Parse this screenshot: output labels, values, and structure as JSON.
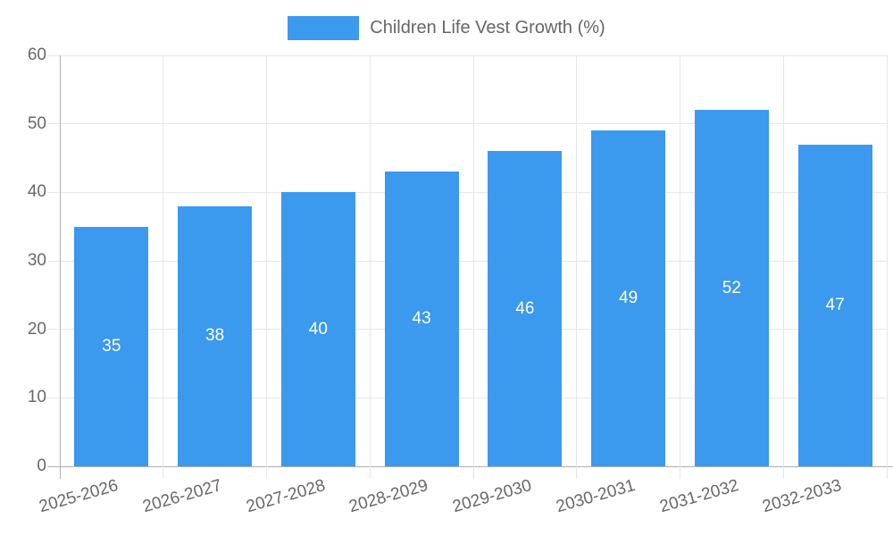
{
  "legend": {
    "label": "Children Life Vest Growth (%)"
  },
  "chart_data": {
    "type": "bar",
    "title": "Children Life Vest Growth (%)",
    "categories": [
      "2025-2026",
      "2026-2027",
      "2027-2028",
      "2028-2029",
      "2029-2030",
      "2030-2031",
      "2031-2032",
      "2032-2033"
    ],
    "values": [
      35,
      38,
      40,
      43,
      46,
      49,
      52,
      47
    ],
    "value_labels": [
      "35",
      "38",
      "40",
      "43",
      "46",
      "49",
      "52",
      "47"
    ],
    "xlabel": "",
    "ylabel": "",
    "ylim": [
      0,
      60
    ],
    "yticks": [
      0,
      10,
      20,
      30,
      40,
      50,
      60
    ],
    "grid": true,
    "legend_position": "top",
    "x_label_rotation_deg": -16,
    "colors": {
      "bar": "#3B99EE",
      "grid": "#e6e6e6",
      "axis_line": "#b0b0b0",
      "axis_text": "#686868",
      "legend_text": "#666666",
      "bar_value_text": "#ffffff",
      "background": "#ffffff"
    }
  }
}
